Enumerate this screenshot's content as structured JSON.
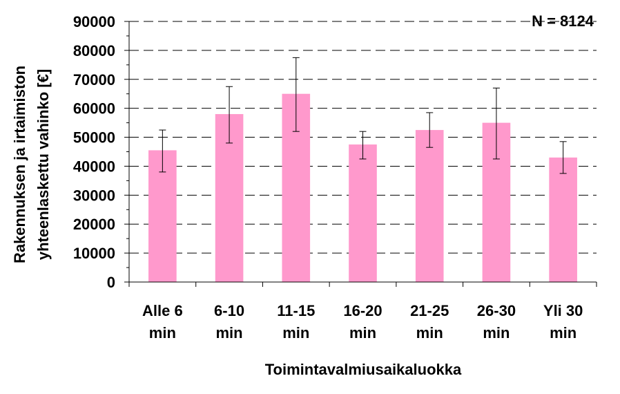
{
  "chart_data": {
    "type": "bar",
    "annotation": "N = 8124",
    "xlabel": "Toimintavalmiusaikaluokka",
    "ylabel_lines": [
      "Rakennuksen ja irtaimiston",
      "yhteenlaskettu vahinko [€]"
    ],
    "categories": [
      [
        "Alle 6",
        "min"
      ],
      [
        "6-10",
        "min"
      ],
      [
        "11-15",
        "min"
      ],
      [
        "16-20",
        "min"
      ],
      [
        "21-25",
        "min"
      ],
      [
        "26-30",
        "min"
      ],
      [
        "Yli 30",
        "min"
      ]
    ],
    "values": [
      45500,
      58000,
      65000,
      47500,
      52500,
      55000,
      43000
    ],
    "error_low": [
      38000,
      48000,
      52000,
      42500,
      46500,
      42500,
      37500
    ],
    "error_high": [
      52500,
      67500,
      77500,
      52000,
      58500,
      67000,
      48500
    ],
    "ylim": [
      0,
      90000
    ],
    "yticks": [
      "0",
      "10000",
      "20000",
      "30000",
      "40000",
      "50000",
      "60000",
      "70000",
      "80000",
      "90000"
    ],
    "gridlines": "dashed horizontal",
    "bar_color": "#ff99cc",
    "axis_color": "#000000"
  }
}
